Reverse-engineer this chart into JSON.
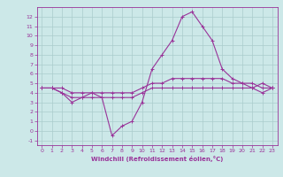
{
  "xlabel": "Windchill (Refroidissement éolien,°C)",
  "background_color": "#cce8e8",
  "grid_color": "#aacccc",
  "line_color": "#993399",
  "spine_color": "#993399",
  "xlim": [
    -0.5,
    23.5
  ],
  "ylim": [
    -1.5,
    13.0
  ],
  "xticks": [
    0,
    1,
    2,
    3,
    4,
    5,
    6,
    7,
    8,
    9,
    10,
    11,
    12,
    13,
    14,
    15,
    16,
    17,
    18,
    19,
    20,
    21,
    22,
    23
  ],
  "yticks": [
    -1,
    0,
    1,
    2,
    3,
    4,
    5,
    6,
    7,
    8,
    9,
    10,
    11,
    12
  ],
  "line1": [
    4.5,
    4.5,
    4.0,
    3.0,
    3.5,
    4.0,
    3.5,
    -0.5,
    0.5,
    1.0,
    3.0,
    6.5,
    8.0,
    9.5,
    12.0,
    12.5,
    11.0,
    9.5,
    6.5,
    5.5,
    5.0,
    4.5,
    5.0,
    4.5
  ],
  "line2": [
    4.5,
    4.5,
    4.5,
    4.0,
    4.0,
    4.0,
    4.0,
    4.0,
    4.0,
    4.0,
    4.5,
    5.0,
    5.0,
    5.5,
    5.5,
    5.5,
    5.5,
    5.5,
    5.5,
    5.0,
    5.0,
    5.0,
    4.5,
    4.5
  ],
  "line3": [
    4.5,
    4.5,
    4.0,
    3.5,
    3.5,
    3.5,
    3.5,
    3.5,
    3.5,
    3.5,
    4.0,
    4.5,
    4.5,
    4.5,
    4.5,
    4.5,
    4.5,
    4.5,
    4.5,
    4.5,
    4.5,
    4.5,
    4.0,
    4.5
  ],
  "tick_fontsize": 4.5,
  "xlabel_fontsize": 5.0
}
